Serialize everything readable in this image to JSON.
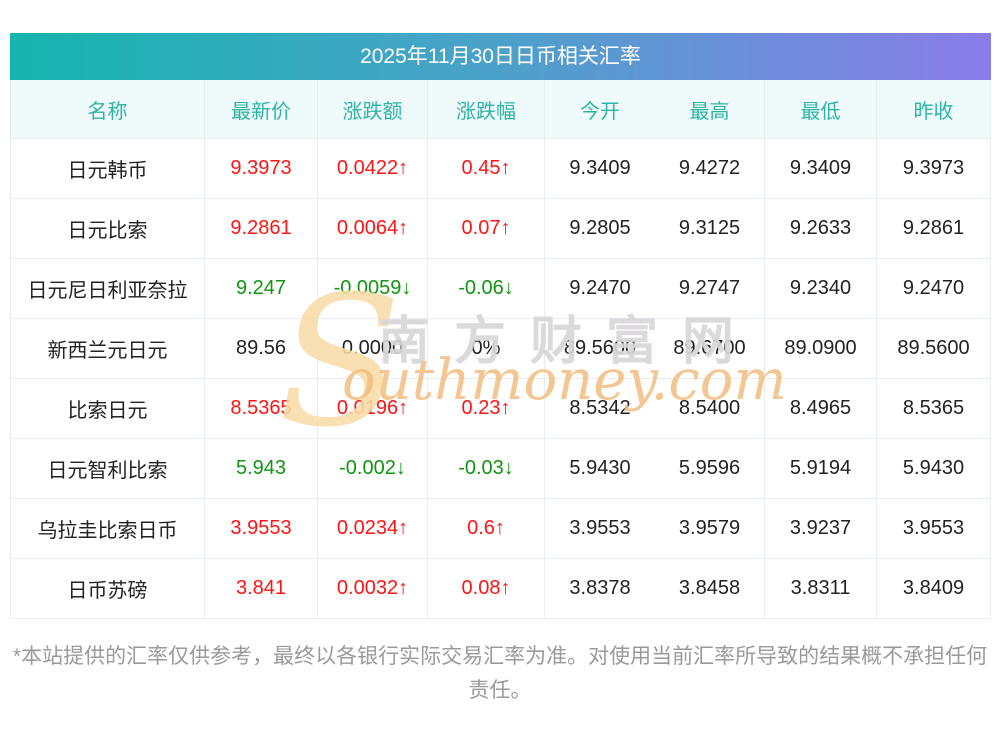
{
  "chart_data": {
    "type": "table",
    "title": "2025年11月30日日币相关汇率",
    "columns": [
      "名称",
      "最新价",
      "涨跌额",
      "涨跌幅",
      "今开",
      "最高",
      "最低",
      "昨收"
    ],
    "rows": [
      {
        "name": "日元韩币",
        "latest": "9.3973",
        "change": "0.0422↑",
        "change_pct": "0.45↑",
        "open": "9.3409",
        "high": "9.4272",
        "low": "9.3409",
        "prev_close": "9.3973",
        "trend": "up"
      },
      {
        "name": "日元比索",
        "latest": "9.2861",
        "change": "0.0064↑",
        "change_pct": "0.07↑",
        "open": "9.2805",
        "high": "9.3125",
        "low": "9.2633",
        "prev_close": "9.2861",
        "trend": "up"
      },
      {
        "name": "日元尼日利亚奈拉",
        "latest": "9.247",
        "change": "-0.0059↓",
        "change_pct": "-0.06↓",
        "open": "9.2470",
        "high": "9.2747",
        "low": "9.2340",
        "prev_close": "9.2470",
        "trend": "down"
      },
      {
        "name": "新西兰元日元",
        "latest": "89.56",
        "change": "0.0000",
        "change_pct": "0%",
        "open": "89.5600",
        "high": "89.6700",
        "low": "89.0900",
        "prev_close": "89.5600",
        "trend": "flat"
      },
      {
        "name": "比索日元",
        "latest": "8.5365",
        "change": "0.0196↑",
        "change_pct": "0.23↑",
        "open": "8.5342",
        "high": "8.5400",
        "low": "8.4965",
        "prev_close": "8.5365",
        "trend": "up"
      },
      {
        "name": "日元智利比索",
        "latest": "5.943",
        "change": "-0.002↓",
        "change_pct": "-0.03↓",
        "open": "5.9430",
        "high": "5.9596",
        "low": "5.9194",
        "prev_close": "5.9430",
        "trend": "down"
      },
      {
        "name": "乌拉圭比索日币",
        "latest": "3.9553",
        "change": "0.0234↑",
        "change_pct": "0.6↑",
        "open": "3.9553",
        "high": "3.9579",
        "low": "3.9237",
        "prev_close": "3.9553",
        "trend": "up"
      },
      {
        "name": "日币苏磅",
        "latest": "3.841",
        "change": "0.0032↑",
        "change_pct": "0.08↑",
        "open": "3.8378",
        "high": "3.8458",
        "low": "3.8311",
        "prev_close": "3.8409",
        "trend": "up"
      }
    ]
  },
  "watermark": {
    "brand_initial": "S",
    "brand_cn": "南方财富网",
    "brand_en": "outhmoney.com"
  },
  "disclaimer": {
    "text": "*本站提供的汇率仅供参考，最终以各银行实际交易汇率为准。对使用当前汇率所导致的结果概不承担任何责任。"
  },
  "colors": {
    "up": "#fe1414",
    "down": "#129512",
    "flat": "#222222",
    "accent": "#2fb3a6",
    "gradient_left": "#15b5ae",
    "gradient_right": "#8b7de9",
    "column_header_bg": "#effbfa",
    "border": "#e7edf3",
    "watermark_orange": "#f3bd80",
    "watermark_gray": "#d9d6da"
  }
}
